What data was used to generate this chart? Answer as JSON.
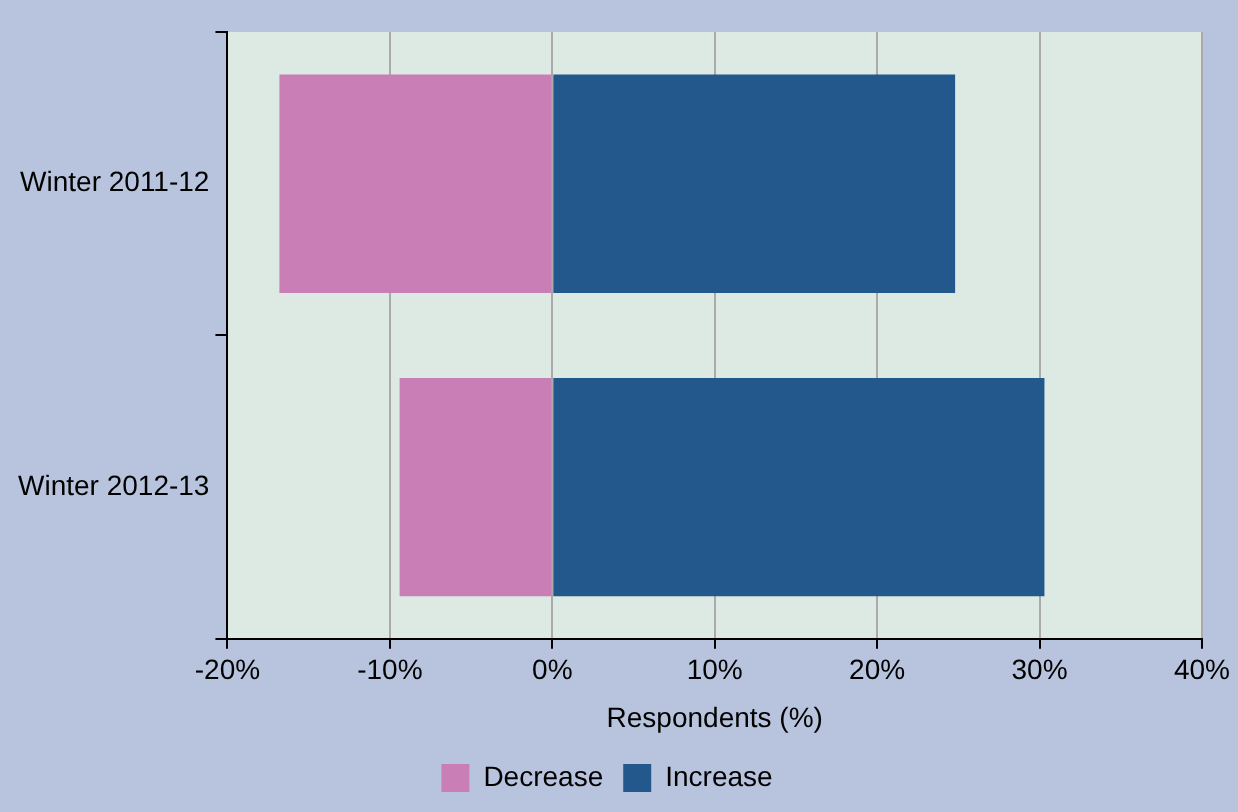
{
  "chart_data": {
    "type": "bar",
    "orientation": "horizontal",
    "stacked": true,
    "xlabel": "Respondents (%)",
    "categories": [
      "Winter 2011-12",
      "Winter 2012-13"
    ],
    "series": [
      {
        "name": "Decrease",
        "color": "#c97fb6",
        "values": [
          -16.8,
          -9.4
        ]
      },
      {
        "name": "Increase",
        "color": "#22588c",
        "values": [
          24.8,
          30.3
        ]
      }
    ],
    "xlim": [
      -20,
      40
    ],
    "xticks": [
      {
        "value": -20,
        "label": "-20%"
      },
      {
        "value": -10,
        "label": "-10%"
      },
      {
        "value": 0,
        "label": "0%"
      },
      {
        "value": 10,
        "label": "10%"
      },
      {
        "value": 20,
        "label": "20%"
      },
      {
        "value": 30,
        "label": "30%"
      },
      {
        "value": 40,
        "label": "40%"
      }
    ],
    "grid": "x",
    "legend": "bottom"
  }
}
